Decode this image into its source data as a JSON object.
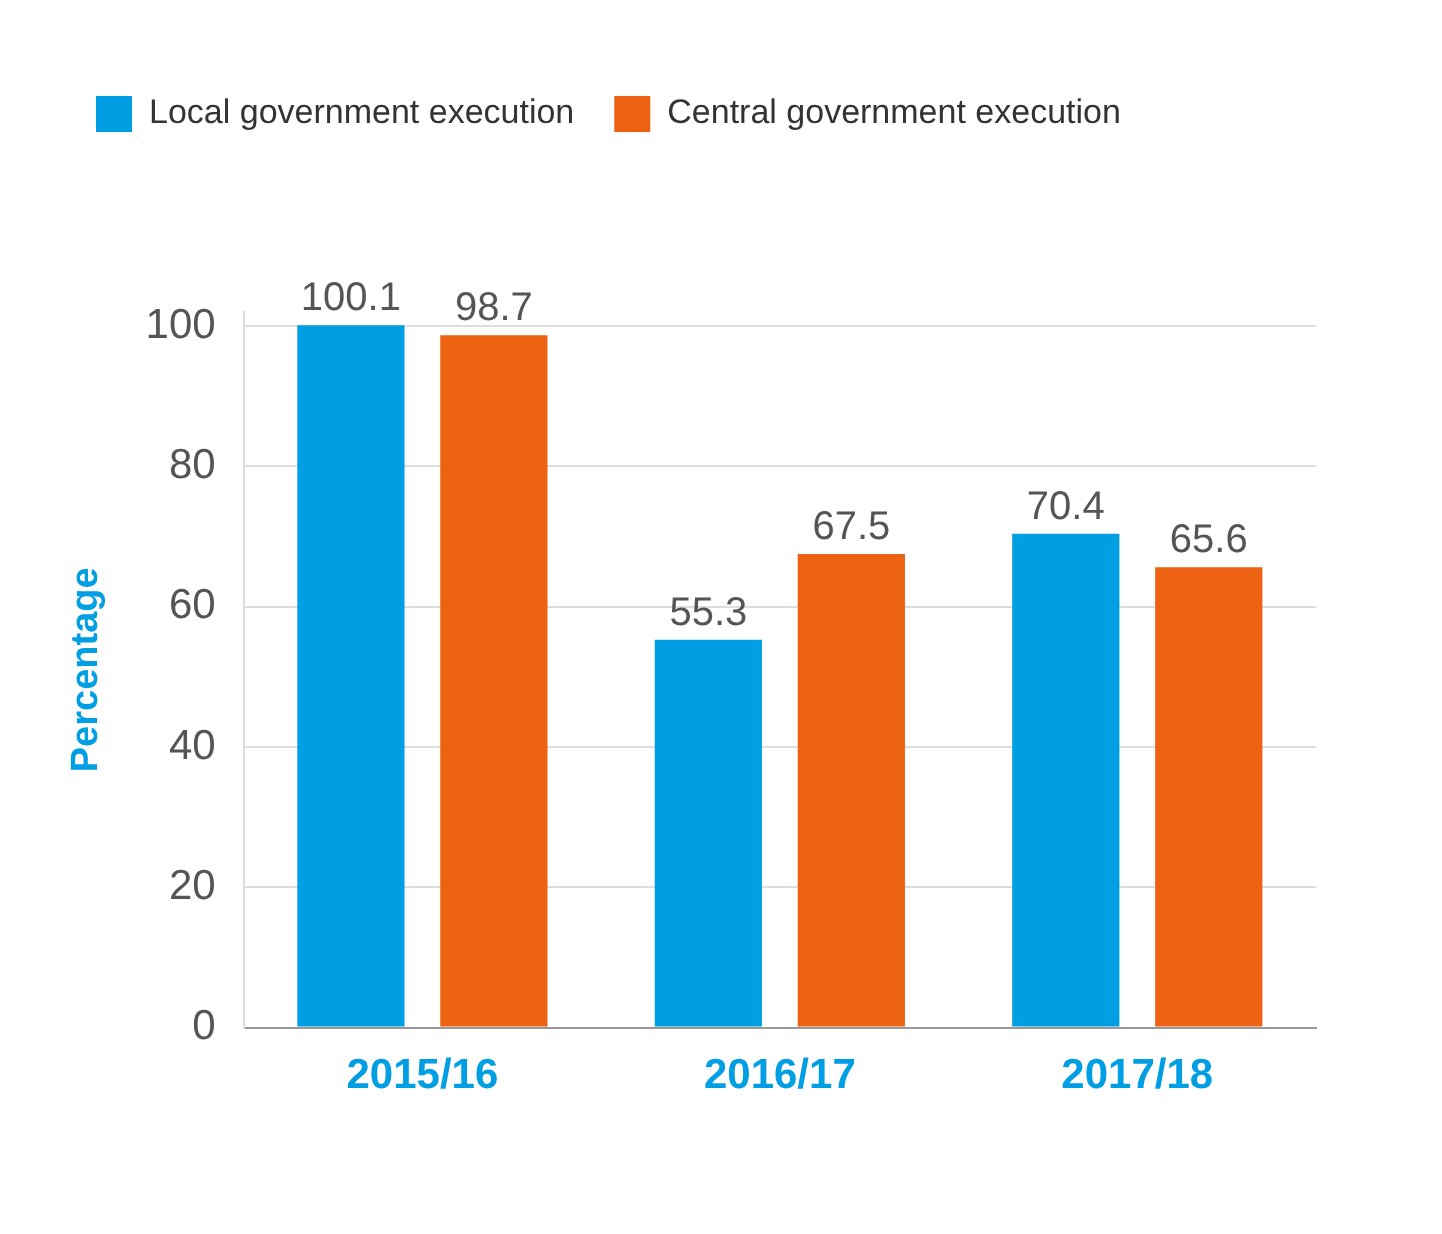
{
  "chart_data": {
    "type": "bar",
    "ylabel": "Percentage",
    "categories": [
      "2015/16",
      "2016/17",
      "2017/18"
    ],
    "series": [
      {
        "name": "Local government execution",
        "color": "#009fe3",
        "values": [
          100.1,
          55.3,
          70.4
        ]
      },
      {
        "name": "Central government execution",
        "color": "#ec6212",
        "values": [
          98.7,
          67.5,
          65.6
        ]
      }
    ],
    "ylim": [
      0,
      102
    ],
    "yticks": [
      0,
      20,
      40,
      60,
      80,
      100
    ],
    "grid": "y",
    "legend": "top left",
    "data_labels": true
  }
}
